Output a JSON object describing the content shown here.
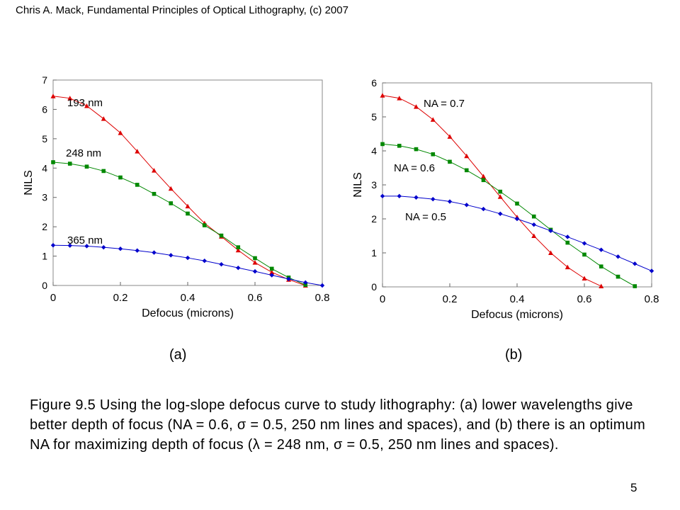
{
  "header": "Chris A. Mack, Fundamental Principles of Optical Lithography, (c) 2007",
  "panels": [
    {
      "label": "(a)"
    },
    {
      "label": "(b)"
    }
  ],
  "caption": {
    "p1": "Figure 9.5  Using the log-slope defocus curve to study lithography:  (a)  lower wavelengths give better depth of focus (NA = 0.6, ",
    "s1": "σ",
    "p2": " = 0.5, 250 nm lines and spaces), and (b) there is an optimum NA for maximizing depth of focus (",
    "s2": "λ",
    "p3": " = 248 nm, ",
    "s3": "σ",
    "p4": " = 0.5, 250 nm lines and spaces)."
  },
  "page_number": "5",
  "colors": {
    "red": "#dd0000",
    "green": "#008800",
    "blue": "#0000cc"
  },
  "chart_data": [
    {
      "type": "line",
      "xlabel": "Defocus (microns)",
      "ylabel": "NILS",
      "xlim": [
        0,
        0.8
      ],
      "ylim": [
        0,
        7
      ],
      "xticks": [
        "0",
        "0.2",
        "0.4",
        "0.6",
        "0.8"
      ],
      "yticks": [
        "0",
        "1",
        "2",
        "3",
        "4",
        "5",
        "6",
        "7"
      ],
      "series": [
        {
          "name": "193 nm",
          "color": "#dd0000",
          "marker": "triangle",
          "x": [
            0,
            0.05,
            0.1,
            0.15,
            0.2,
            0.25,
            0.3,
            0.35,
            0.4,
            0.45,
            0.5,
            0.55,
            0.6,
            0.65,
            0.7,
            0.75
          ],
          "values": [
            6.45,
            6.38,
            6.12,
            5.68,
            5.2,
            4.57,
            3.92,
            3.3,
            2.7,
            2.12,
            1.67,
            1.2,
            0.78,
            0.45,
            0.2,
            0.0
          ]
        },
        {
          "name": "248 nm",
          "color": "#008800",
          "marker": "square",
          "x": [
            0,
            0.05,
            0.1,
            0.15,
            0.2,
            0.25,
            0.3,
            0.35,
            0.4,
            0.45,
            0.5,
            0.55,
            0.6,
            0.65,
            0.7,
            0.75
          ],
          "values": [
            4.2,
            4.15,
            4.05,
            3.9,
            3.68,
            3.43,
            3.12,
            2.8,
            2.45,
            2.05,
            1.7,
            1.3,
            0.93,
            0.57,
            0.27,
            0.02
          ]
        },
        {
          "name": "365 nm",
          "color": "#0000cc",
          "marker": "diamond",
          "x": [
            0,
            0.05,
            0.1,
            0.15,
            0.2,
            0.25,
            0.3,
            0.35,
            0.4,
            0.45,
            0.5,
            0.55,
            0.6,
            0.65,
            0.7,
            0.75,
            0.8
          ],
          "values": [
            1.37,
            1.36,
            1.34,
            1.3,
            1.25,
            1.19,
            1.12,
            1.03,
            0.94,
            0.84,
            0.72,
            0.6,
            0.48,
            0.35,
            0.22,
            0.1,
            0.0
          ]
        }
      ]
    },
    {
      "type": "line",
      "xlabel": "Defocus (microns)",
      "ylabel": "NILS",
      "xlim": [
        0,
        0.8
      ],
      "ylim": [
        0,
        6
      ],
      "xticks": [
        "0",
        "0.2",
        "0.4",
        "0.6",
        "0.8"
      ],
      "yticks": [
        "0",
        "1",
        "2",
        "3",
        "4",
        "5",
        "6"
      ],
      "series": [
        {
          "name": "NA = 0.7",
          "color": "#dd0000",
          "marker": "triangle",
          "x": [
            0,
            0.05,
            0.1,
            0.15,
            0.2,
            0.25,
            0.3,
            0.35,
            0.4,
            0.45,
            0.5,
            0.55,
            0.6,
            0.65
          ],
          "values": [
            5.63,
            5.55,
            5.3,
            4.92,
            4.42,
            3.85,
            3.25,
            2.65,
            2.05,
            1.5,
            1.0,
            0.58,
            0.25,
            0.02
          ]
        },
        {
          "name": "NA = 0.6",
          "color": "#008800",
          "marker": "square",
          "x": [
            0,
            0.05,
            0.1,
            0.15,
            0.2,
            0.25,
            0.3,
            0.35,
            0.4,
            0.45,
            0.5,
            0.55,
            0.6,
            0.65,
            0.7,
            0.75
          ],
          "values": [
            4.2,
            4.15,
            4.05,
            3.9,
            3.68,
            3.43,
            3.14,
            2.8,
            2.45,
            2.07,
            1.68,
            1.3,
            0.95,
            0.6,
            0.3,
            0.02
          ]
        },
        {
          "name": "NA = 0.5",
          "color": "#0000cc",
          "marker": "diamond",
          "x": [
            0,
            0.05,
            0.1,
            0.15,
            0.2,
            0.25,
            0.3,
            0.35,
            0.4,
            0.45,
            0.5,
            0.55,
            0.6,
            0.65,
            0.7,
            0.75,
            0.8
          ],
          "values": [
            2.67,
            2.67,
            2.63,
            2.58,
            2.51,
            2.41,
            2.29,
            2.15,
            2.0,
            1.83,
            1.65,
            1.47,
            1.28,
            1.09,
            0.89,
            0.68,
            0.47
          ]
        }
      ]
    }
  ]
}
